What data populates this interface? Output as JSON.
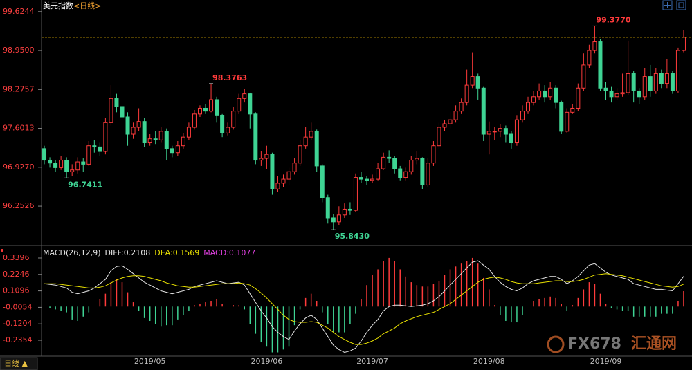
{
  "header": {
    "title": "美元指数",
    "subtitle": "<日线>"
  },
  "chart_data": [
    {
      "type": "candlestick",
      "up_color": "#ff3b3b",
      "down_color": "#3fd494",
      "last_price_line": true,
      "last_price_color": "#d8a800",
      "ylim": [
        95.63,
        99.73
      ],
      "yticks": [
        99.6244,
        {
          "value": 98.95,
          "label": "98.9500"
        },
        98.2757,
        97.6013,
        {
          "value": 96.927,
          "label": "96.9270"
        },
        96.2526
      ],
      "annotations": [
        {
          "value": 99.377,
          "label": "99.3770"
        },
        {
          "value": 98.3763,
          "label": "98.3763"
        },
        {
          "value": 96.7411,
          "label": "96.7411"
        },
        {
          "value": 95.843,
          "label": "95.8430"
        }
      ],
      "open": [
        97.25,
        97.05,
        97.0,
        96.92,
        97.05,
        96.85,
        96.88,
        97.02,
        96.98,
        97.3,
        97.28,
        97.2,
        97.7,
        98.12,
        97.98,
        97.8,
        97.5,
        97.62,
        97.72,
        97.35,
        97.42,
        97.4,
        97.55,
        97.25,
        97.18,
        97.3,
        97.45,
        97.62,
        97.85,
        97.95,
        97.9,
        98.1,
        97.82,
        97.52,
        97.62,
        97.9,
        98.12,
        98.2,
        97.85,
        97.05,
        97.08,
        97.15,
        96.55,
        96.65,
        96.72,
        96.85,
        97.0,
        97.3,
        97.45,
        97.55,
        96.95,
        96.4,
        96.05,
        95.98,
        96.1,
        96.2,
        96.18,
        96.75,
        96.72,
        96.7,
        96.72,
        96.9,
        97.1,
        97.08,
        96.9,
        96.75,
        96.85,
        97.05,
        97.08,
        96.62,
        97.0,
        97.3,
        97.62,
        97.68,
        97.75,
        97.9,
        98.05,
        98.35,
        98.5,
        98.3,
        97.5,
        97.55,
        97.55,
        97.6,
        97.5,
        97.35,
        97.75,
        97.9,
        98.05,
        98.15,
        98.25,
        98.15,
        98.3,
        98.05,
        97.55,
        97.88,
        97.95,
        98.3,
        98.7,
        98.95,
        99.1,
        98.3,
        98.25,
        98.15,
        98.2,
        98.22,
        98.55,
        98.25,
        98.15,
        98.5,
        98.25,
        98.55,
        98.38,
        98.55,
        98.25,
        98.95
      ],
      "high": [
        97.3,
        97.1,
        97.05,
        97.12,
        97.1,
        96.98,
        97.1,
        97.08,
        97.38,
        97.4,
        97.35,
        97.78,
        98.35,
        98.2,
        98.05,
        97.88,
        97.7,
        97.95,
        97.78,
        97.5,
        97.55,
        97.62,
        97.6,
        97.3,
        97.38,
        97.52,
        97.7,
        97.92,
        98.0,
        98.02,
        98.3763,
        98.15,
        97.85,
        97.7,
        97.98,
        98.2,
        98.28,
        98.22,
        97.88,
        97.2,
        97.3,
        97.18,
        96.78,
        96.8,
        96.92,
        97.08,
        97.4,
        97.62,
        97.7,
        97.58,
        96.98,
        96.45,
        96.12,
        96.25,
        96.3,
        96.32,
        96.82,
        96.85,
        96.78,
        96.8,
        97.0,
        97.18,
        97.22,
        97.12,
        96.95,
        96.92,
        97.12,
        97.2,
        97.1,
        97.08,
        97.38,
        97.7,
        97.75,
        97.88,
        98.0,
        98.12,
        98.62,
        98.92,
        98.55,
        98.32,
        97.72,
        97.62,
        97.68,
        97.65,
        97.55,
        97.82,
        98.0,
        98.15,
        98.25,
        98.38,
        98.35,
        98.4,
        98.35,
        98.08,
        97.95,
        98.02,
        98.38,
        98.9,
        99.05,
        99.377,
        99.15,
        98.4,
        98.32,
        98.3,
        98.55,
        99.12,
        98.6,
        98.3,
        98.65,
        98.7,
        98.65,
        98.62,
        98.8,
        98.6,
        99.0,
        99.3
      ],
      "low": [
        96.98,
        96.92,
        96.85,
        96.88,
        96.7411,
        96.78,
        96.82,
        96.85,
        96.95,
        97.18,
        97.12,
        97.15,
        97.65,
        97.88,
        97.7,
        97.3,
        97.42,
        97.55,
        97.28,
        97.3,
        97.33,
        97.35,
        97.05,
        97.1,
        97.12,
        97.25,
        97.4,
        97.58,
        97.8,
        97.85,
        97.88,
        97.7,
        97.45,
        97.48,
        97.58,
        97.85,
        98.05,
        97.6,
        96.98,
        96.95,
        96.9,
        96.45,
        96.5,
        96.58,
        96.62,
        96.8,
        96.95,
        97.25,
        97.4,
        96.85,
        96.32,
        95.95,
        95.843,
        95.92,
        96.05,
        96.1,
        96.15,
        96.65,
        96.62,
        96.65,
        96.7,
        96.88,
        97.0,
        96.82,
        96.7,
        96.7,
        96.8,
        96.98,
        96.55,
        96.58,
        96.95,
        97.25,
        97.55,
        97.6,
        97.7,
        97.85,
        98.0,
        98.3,
        98.1,
        97.38,
        97.15,
        97.4,
        97.45,
        97.35,
        97.25,
        97.3,
        97.7,
        97.85,
        98.0,
        98.1,
        98.05,
        98.1,
        97.95,
        97.5,
        97.52,
        97.85,
        97.9,
        98.25,
        98.65,
        98.9,
        98.25,
        98.1,
        98.05,
        98.1,
        98.15,
        98.18,
        98.05,
        98.02,
        98.1,
        98.15,
        98.2,
        98.3,
        98.3,
        98.2,
        98.22,
        98.92
      ],
      "close": [
        97.05,
        97.0,
        96.92,
        97.05,
        96.85,
        96.88,
        97.02,
        96.98,
        97.3,
        97.28,
        97.2,
        97.7,
        98.12,
        97.98,
        97.8,
        97.5,
        97.62,
        97.72,
        97.35,
        97.42,
        97.4,
        97.55,
        97.25,
        97.18,
        97.3,
        97.45,
        97.62,
        97.85,
        97.95,
        97.9,
        98.1,
        97.82,
        97.52,
        97.62,
        97.9,
        98.12,
        98.2,
        97.85,
        97.05,
        97.08,
        97.15,
        96.55,
        96.65,
        96.72,
        96.85,
        97.0,
        97.3,
        97.45,
        97.55,
        96.95,
        96.4,
        96.05,
        95.98,
        96.1,
        96.2,
        96.18,
        96.75,
        96.72,
        96.7,
        96.72,
        96.9,
        97.1,
        97.08,
        96.9,
        96.75,
        96.85,
        97.05,
        97.08,
        96.62,
        97.0,
        97.3,
        97.62,
        97.68,
        97.75,
        97.9,
        98.05,
        98.35,
        98.5,
        98.3,
        97.5,
        97.55,
        97.55,
        97.6,
        97.5,
        97.35,
        97.75,
        97.9,
        98.05,
        98.15,
        98.25,
        98.15,
        98.3,
        98.05,
        97.55,
        97.88,
        97.95,
        98.3,
        98.7,
        98.95,
        99.1,
        98.3,
        98.25,
        98.15,
        98.2,
        98.22,
        98.55,
        98.25,
        98.15,
        98.5,
        98.25,
        98.55,
        98.38,
        98.55,
        98.25,
        98.95,
        99.18
      ]
    },
    {
      "type": "macd",
      "title": "MACD(26,12,9)",
      "ylim": [
        -0.332,
        0.412
      ],
      "yticks": [
        0.3396,
        0.2246,
        0.1096,
        -0.0054,
        -0.1204,
        -0.2354
      ],
      "categories": [
        null,
        null,
        null,
        null,
        null,
        null,
        null,
        null,
        null,
        null,
        null,
        null,
        null,
        null,
        null,
        null,
        null,
        null,
        null,
        "2019/05",
        null,
        null,
        null,
        null,
        null,
        null,
        null,
        null,
        null,
        null,
        null,
        null,
        null,
        null,
        null,
        null,
        null,
        null,
        null,
        null,
        "2019/06",
        null,
        null,
        null,
        null,
        null,
        null,
        null,
        null,
        null,
        null,
        null,
        null,
        null,
        null,
        null,
        null,
        null,
        null,
        "2019/07",
        null,
        null,
        null,
        null,
        null,
        null,
        null,
        null,
        null,
        null,
        null,
        null,
        null,
        null,
        null,
        null,
        null,
        null,
        null,
        null,
        "2019/08",
        null,
        null,
        null,
        null,
        null,
        null,
        null,
        null,
        null,
        null,
        null,
        null,
        null,
        null,
        null,
        null,
        null,
        null,
        null,
        null,
        "2019/09",
        null,
        null,
        null,
        null,
        null,
        null,
        null,
        null,
        null,
        null,
        null,
        null,
        null,
        null
      ],
      "series": [
        {
          "name": "DIFF:0.2108",
          "kind": "line",
          "color": "#e6e6e6",
          "values": [
            0.16,
            0.155,
            0.15,
            0.14,
            0.13,
            0.1,
            0.09,
            0.1,
            0.11,
            0.13,
            0.16,
            0.19,
            0.25,
            0.28,
            0.285,
            0.26,
            0.23,
            0.2,
            0.17,
            0.15,
            0.13,
            0.11,
            0.1,
            0.09,
            0.1,
            0.11,
            0.12,
            0.14,
            0.15,
            0.16,
            0.17,
            0.18,
            0.17,
            0.16,
            0.165,
            0.17,
            0.15,
            0.09,
            0.03,
            -0.03,
            -0.08,
            -0.14,
            -0.18,
            -0.21,
            -0.23,
            -0.17,
            -0.12,
            -0.08,
            -0.06,
            -0.09,
            -0.15,
            -0.21,
            -0.27,
            -0.3,
            -0.32,
            -0.31,
            -0.29,
            -0.24,
            -0.18,
            -0.13,
            -0.09,
            -0.03,
            0.0,
            0.01,
            0.01,
            0.005,
            0.0,
            0.005,
            0.01,
            0.02,
            0.04,
            0.07,
            0.11,
            0.15,
            0.19,
            0.23,
            0.27,
            0.31,
            0.32,
            0.29,
            0.26,
            0.21,
            0.17,
            0.14,
            0.12,
            0.11,
            0.13,
            0.16,
            0.18,
            0.19,
            0.2,
            0.21,
            0.21,
            0.19,
            0.16,
            0.18,
            0.21,
            0.25,
            0.29,
            0.3,
            0.27,
            0.24,
            0.22,
            0.21,
            0.2,
            0.19,
            0.16,
            0.15,
            0.14,
            0.13,
            0.12,
            0.12,
            0.115,
            0.11,
            0.16,
            0.2108
          ]
        },
        {
          "name": "DEA:0.1569",
          "kind": "line",
          "color": "#e8e000",
          "values": [
            0.16,
            0.16,
            0.16,
            0.155,
            0.15,
            0.145,
            0.14,
            0.135,
            0.13,
            0.13,
            0.135,
            0.145,
            0.165,
            0.185,
            0.2,
            0.21,
            0.215,
            0.215,
            0.21,
            0.2,
            0.19,
            0.18,
            0.165,
            0.155,
            0.145,
            0.14,
            0.135,
            0.135,
            0.14,
            0.145,
            0.15,
            0.155,
            0.16,
            0.16,
            0.16,
            0.165,
            0.16,
            0.15,
            0.125,
            0.095,
            0.06,
            0.02,
            -0.02,
            -0.06,
            -0.09,
            -0.105,
            -0.11,
            -0.11,
            -0.105,
            -0.11,
            -0.13,
            -0.15,
            -0.18,
            -0.21,
            -0.23,
            -0.25,
            -0.265,
            -0.265,
            -0.255,
            -0.24,
            -0.22,
            -0.19,
            -0.17,
            -0.15,
            -0.12,
            -0.1,
            -0.085,
            -0.07,
            -0.06,
            -0.05,
            -0.04,
            -0.02,
            0.0,
            0.02,
            0.05,
            0.08,
            0.11,
            0.14,
            0.17,
            0.19,
            0.2,
            0.205,
            0.2,
            0.19,
            0.175,
            0.165,
            0.16,
            0.16,
            0.16,
            0.165,
            0.17,
            0.175,
            0.18,
            0.18,
            0.175,
            0.175,
            0.18,
            0.19,
            0.205,
            0.22,
            0.225,
            0.23,
            0.225,
            0.22,
            0.215,
            0.205,
            0.195,
            0.185,
            0.175,
            0.165,
            0.155,
            0.145,
            0.14,
            0.135,
            0.14,
            0.1569
          ]
        },
        {
          "name": "MACD:0.1077",
          "kind": "bar",
          "color": "#e040e0",
          "positive_color": "#ff3b3b",
          "negative_color": "#3fd494",
          "values": [
            0,
            -0.01,
            -0.02,
            -0.03,
            -0.04,
            -0.09,
            -0.1,
            -0.07,
            -0.04,
            0,
            0.05,
            0.09,
            0.17,
            0.19,
            0.17,
            0.1,
            0.03,
            -0.03,
            -0.08,
            -0.1,
            -0.12,
            -0.14,
            -0.13,
            -0.13,
            -0.09,
            -0.06,
            -0.03,
            0.01,
            0.02,
            0.03,
            0.04,
            0.05,
            0.02,
            0,
            0.01,
            0.01,
            -0.02,
            -0.12,
            -0.19,
            -0.25,
            -0.28,
            -0.32,
            -0.32,
            -0.3,
            -0.28,
            -0.13,
            -0.02,
            0.06,
            0.09,
            0.04,
            -0.04,
            -0.12,
            -0.18,
            -0.18,
            -0.18,
            -0.12,
            -0.05,
            0.05,
            0.15,
            0.22,
            0.26,
            0.32,
            0.34,
            0.32,
            0.26,
            0.21,
            0.17,
            0.15,
            0.14,
            0.14,
            0.16,
            0.18,
            0.22,
            0.26,
            0.28,
            0.3,
            0.32,
            0.34,
            0.3,
            0.2,
            0.12,
            0.01,
            -0.06,
            -0.1,
            -0.11,
            -0.11,
            -0.06,
            0,
            0.04,
            0.05,
            0.06,
            0.07,
            0.06,
            0.02,
            -0.03,
            0.01,
            0.06,
            0.12,
            0.17,
            0.16,
            0.09,
            0.02,
            -0.01,
            -0.02,
            -0.03,
            -0.03,
            -0.07,
            -0.07,
            -0.07,
            -0.07,
            -0.07,
            -0.05,
            -0.05,
            -0.05,
            0.04,
            0.1077
          ]
        }
      ]
    }
  ],
  "footer": {
    "period_button": "日线 ▲",
    "brand": "FX678",
    "brand_name": "汇通网"
  }
}
